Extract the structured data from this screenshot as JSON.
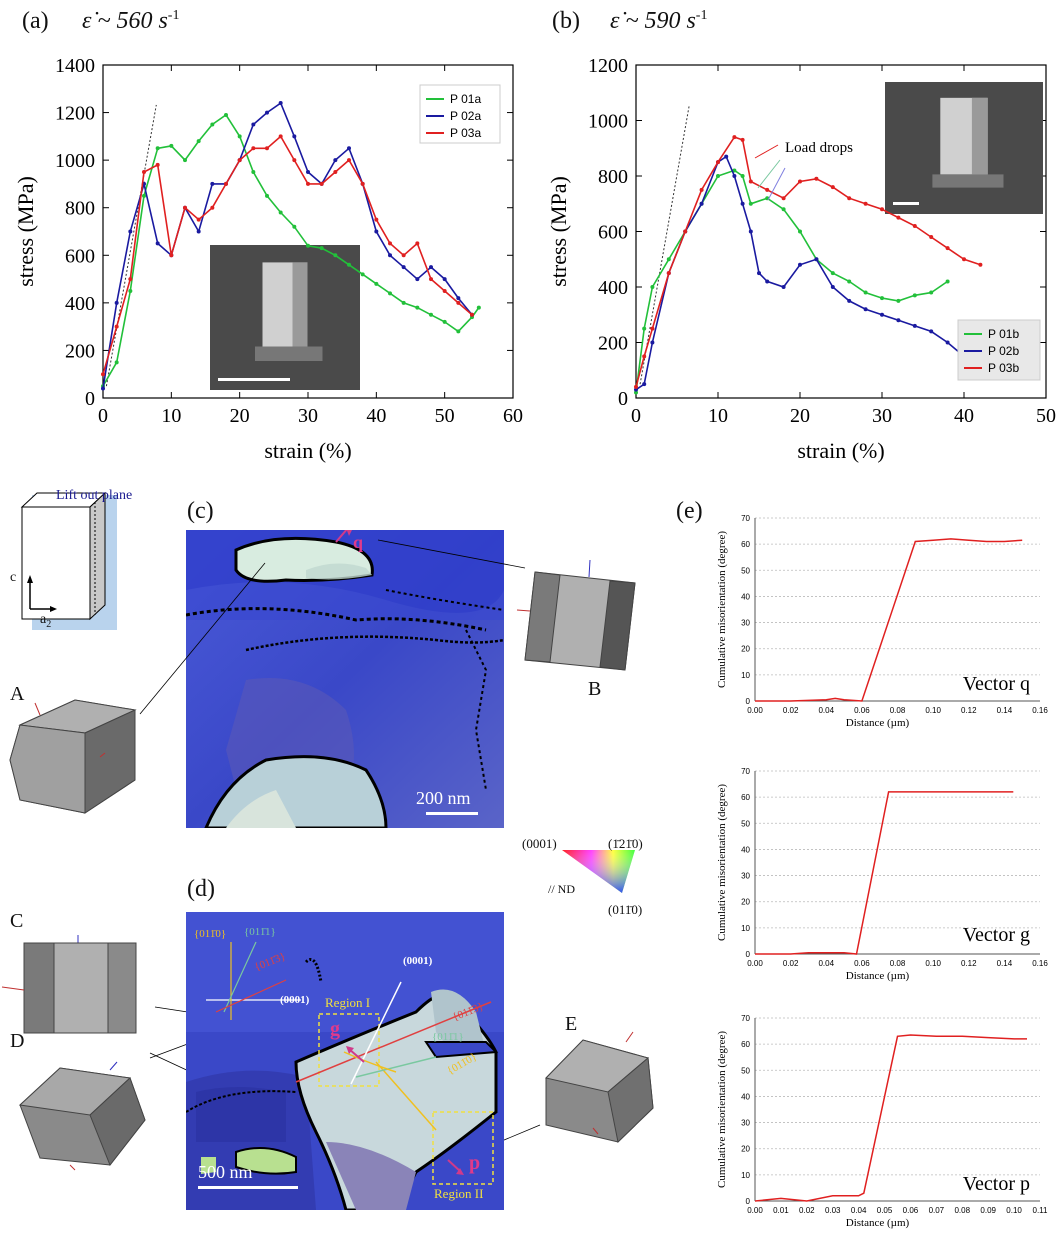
{
  "panel_a": {
    "label": "(a)",
    "rate_text": "ε̇ ~ 560 s",
    "rate_sup": "-1",
    "xlabel": "strain (%)",
    "ylabel": "stress (MPa)",
    "xticks": [
      "0",
      "10",
      "20",
      "30",
      "40",
      "50",
      "60"
    ],
    "yticks": [
      "0",
      "200",
      "400",
      "600",
      "800",
      "1000",
      "1200",
      "1400"
    ],
    "legend": [
      "P 01a",
      "P 02a",
      "P 03a"
    ],
    "colors": [
      "#22c03a",
      "#1a1aa0",
      "#e02020"
    ]
  },
  "panel_b": {
    "label": "(b)",
    "rate_text": "ε̇ ~ 590 s",
    "rate_sup": "-1",
    "xlabel": "strain (%)",
    "ylabel": "stress (MPa)",
    "xticks": [
      "0",
      "10",
      "20",
      "30",
      "40",
      "50"
    ],
    "yticks": [
      "0",
      "200",
      "400",
      "600",
      "800",
      "1000",
      "1200"
    ],
    "legend": [
      "P 01b",
      "P 02b",
      "P 03b"
    ],
    "annotation": "Load drops",
    "colors": [
      "#22c03a",
      "#1a1aa0",
      "#e02020"
    ]
  },
  "chart_data": [
    {
      "type": "line",
      "xlabel": "strain (%)",
      "ylabel": "stress (MPa)",
      "xlim": [
        0,
        60
      ],
      "ylim": [
        0,
        1400
      ],
      "series": [
        {
          "name": "P 01a",
          "x": [
            0,
            2,
            4,
            6,
            8,
            10,
            12,
            14,
            16,
            18,
            20,
            22,
            24,
            26,
            28,
            30,
            32,
            34,
            36,
            38,
            40,
            42,
            44,
            46,
            48,
            50,
            52,
            54,
            55
          ],
          "y": [
            50,
            150,
            450,
            850,
            1050,
            1060,
            1000,
            1080,
            1150,
            1190,
            1100,
            950,
            850,
            780,
            720,
            640,
            630,
            600,
            560,
            520,
            480,
            440,
            400,
            380,
            350,
            320,
            280,
            340,
            380
          ]
        },
        {
          "name": "P 02a",
          "x": [
            0,
            2,
            4,
            6,
            8,
            10,
            12,
            14,
            16,
            18,
            20,
            22,
            24,
            26,
            28,
            30,
            32,
            34,
            36,
            38,
            40,
            42,
            44,
            46,
            48,
            50,
            52,
            54
          ],
          "y": [
            40,
            400,
            700,
            900,
            650,
            600,
            800,
            700,
            900,
            900,
            1000,
            1150,
            1200,
            1240,
            1100,
            950,
            900,
            1000,
            1050,
            900,
            700,
            600,
            550,
            500,
            550,
            500,
            420,
            350
          ]
        },
        {
          "name": "P 03a",
          "x": [
            0,
            2,
            4,
            6,
            8,
            10,
            12,
            14,
            16,
            18,
            20,
            22,
            24,
            26,
            28,
            30,
            32,
            34,
            36,
            38,
            40,
            42,
            44,
            46,
            48,
            50,
            52,
            54
          ],
          "y": [
            100,
            300,
            500,
            950,
            980,
            600,
            800,
            750,
            800,
            900,
            1000,
            1050,
            1050,
            1100,
            1000,
            900,
            900,
            950,
            1000,
            900,
            750,
            650,
            600,
            650,
            500,
            450,
            400,
            350
          ]
        }
      ]
    },
    {
      "type": "line",
      "xlabel": "strain (%)",
      "ylabel": "stress (MPa)",
      "xlim": [
        0,
        50
      ],
      "ylim": [
        0,
        1200
      ],
      "series": [
        {
          "name": "P 01b",
          "x": [
            0,
            1,
            2,
            4,
            6,
            8,
            10,
            12,
            13,
            14,
            16,
            18,
            20,
            22,
            24,
            26,
            28,
            30,
            32,
            34,
            36,
            38
          ],
          "y": [
            20,
            250,
            400,
            500,
            600,
            700,
            800,
            820,
            800,
            700,
            720,
            680,
            600,
            500,
            450,
            420,
            380,
            360,
            350,
            370,
            380,
            420
          ]
        },
        {
          "name": "P 02b",
          "x": [
            0,
            1,
            2,
            4,
            6,
            8,
            10,
            11,
            12,
            13,
            14,
            15,
            16,
            18,
            20,
            22,
            24,
            26,
            28,
            30,
            32,
            34,
            36,
            38,
            40
          ],
          "y": [
            30,
            50,
            200,
            450,
            600,
            700,
            850,
            870,
            800,
            700,
            600,
            450,
            420,
            400,
            480,
            500,
            400,
            350,
            320,
            300,
            280,
            260,
            240,
            200,
            150
          ]
        },
        {
          "name": "P 03b",
          "x": [
            0,
            1,
            2,
            4,
            6,
            8,
            10,
            12,
            13,
            14,
            16,
            18,
            20,
            22,
            24,
            26,
            28,
            30,
            32,
            34,
            36,
            38,
            40,
            42
          ],
          "y": [
            40,
            150,
            250,
            450,
            600,
            750,
            850,
            940,
            930,
            780,
            750,
            720,
            780,
            790,
            760,
            720,
            700,
            680,
            650,
            620,
            580,
            540,
            500,
            480
          ]
        }
      ]
    },
    {
      "type": "line",
      "title": "Vector q",
      "xlabel": "Distance (µm)",
      "ylabel": "Cumulative misorientation (degree)",
      "xlim": [
        0,
        0.16
      ],
      "ylim": [
        0,
        70
      ],
      "xticks": [
        "0.00",
        "0.02",
        "0.04",
        "0.06",
        "0.08",
        "0.10",
        "0.12",
        "0.14",
        "0.16"
      ],
      "yticks": [
        "0",
        "10",
        "20",
        "30",
        "40",
        "50",
        "60",
        "70"
      ],
      "series": [
        {
          "name": "",
          "x": [
            0,
            0.02,
            0.04,
            0.045,
            0.05,
            0.06,
            0.09,
            0.1,
            0.11,
            0.12,
            0.13,
            0.14,
            0.15
          ],
          "y": [
            0,
            0,
            0.5,
            1,
            0.5,
            0,
            61,
            61.5,
            62,
            61.5,
            61,
            61,
            61.5
          ]
        }
      ]
    },
    {
      "type": "line",
      "title": "Vector g",
      "xlabel": "Distance (µm)",
      "ylabel": "Cumulative misorientation (degree)",
      "xlim": [
        0,
        0.16
      ],
      "ylim": [
        0,
        70
      ],
      "xticks": [
        "0.00",
        "0.02",
        "0.04",
        "0.06",
        "0.08",
        "0.10",
        "0.12",
        "0.14",
        "0.16"
      ],
      "yticks": [
        "0",
        "10",
        "20",
        "30",
        "40",
        "50",
        "60",
        "70"
      ],
      "series": [
        {
          "name": "",
          "x": [
            0,
            0.02,
            0.03,
            0.05,
            0.057,
            0.075,
            0.09,
            0.1,
            0.12,
            0.145
          ],
          "y": [
            0,
            0,
            0.5,
            0.5,
            0,
            62,
            62,
            62,
            62,
            62
          ]
        }
      ]
    },
    {
      "type": "line",
      "title": "Vector p",
      "xlabel": "Distance (µm)",
      "ylabel": "Cumulative misorientation (degree)",
      "xlim": [
        0,
        0.11
      ],
      "ylim": [
        0,
        70
      ],
      "xticks": [
        "0.00",
        "0.01",
        "0.02",
        "0.03",
        "0.04",
        "0.05",
        "0.06",
        "0.07",
        "0.08",
        "0.09",
        "0.10",
        "0.11"
      ],
      "yticks": [
        "0",
        "10",
        "20",
        "30",
        "40",
        "50",
        "60",
        "70"
      ],
      "series": [
        {
          "name": "",
          "x": [
            0,
            0.01,
            0.02,
            0.03,
            0.04,
            0.042,
            0.055,
            0.06,
            0.07,
            0.08,
            0.09,
            0.1,
            0.105
          ],
          "y": [
            0,
            1,
            0,
            2,
            2,
            3,
            63,
            63.5,
            63,
            63,
            62.5,
            62,
            62
          ]
        }
      ]
    }
  ],
  "panel_c": {
    "label": "(c)",
    "scalebar": "200 nm",
    "vector_label": "q",
    "crystal_a": "A",
    "crystal_b": "B",
    "lift_out": "Lift out plane",
    "axis_c": "c",
    "axis_a2": "a",
    "axis_a2_sub": "2"
  },
  "legend_ipf": {
    "top_left": "(0001)",
    "top_right": "(1̄21̄0)",
    "bottom": "(011̄0)",
    "nd": "// ND"
  },
  "panel_d": {
    "label": "(d)",
    "scalebar": "500 nm",
    "region1": "Region I",
    "region2": "Region II",
    "vec_g": "g",
    "vec_p": "p",
    "crystal_c": "C",
    "crystal_d": "D",
    "crystal_e": "E",
    "plane_0110": "{011̄0}",
    "plane_0111": "{011̄1}",
    "plane_0113": "{011̄3}",
    "plane_0001": "(0001)",
    "plane_0001b": "(0001)",
    "plane_0113b": "{011̄3}",
    "plane_0111b": "{011̄1}",
    "plane_0110b": "{011̄0}"
  },
  "panel_e": {
    "label": "(e)"
  }
}
